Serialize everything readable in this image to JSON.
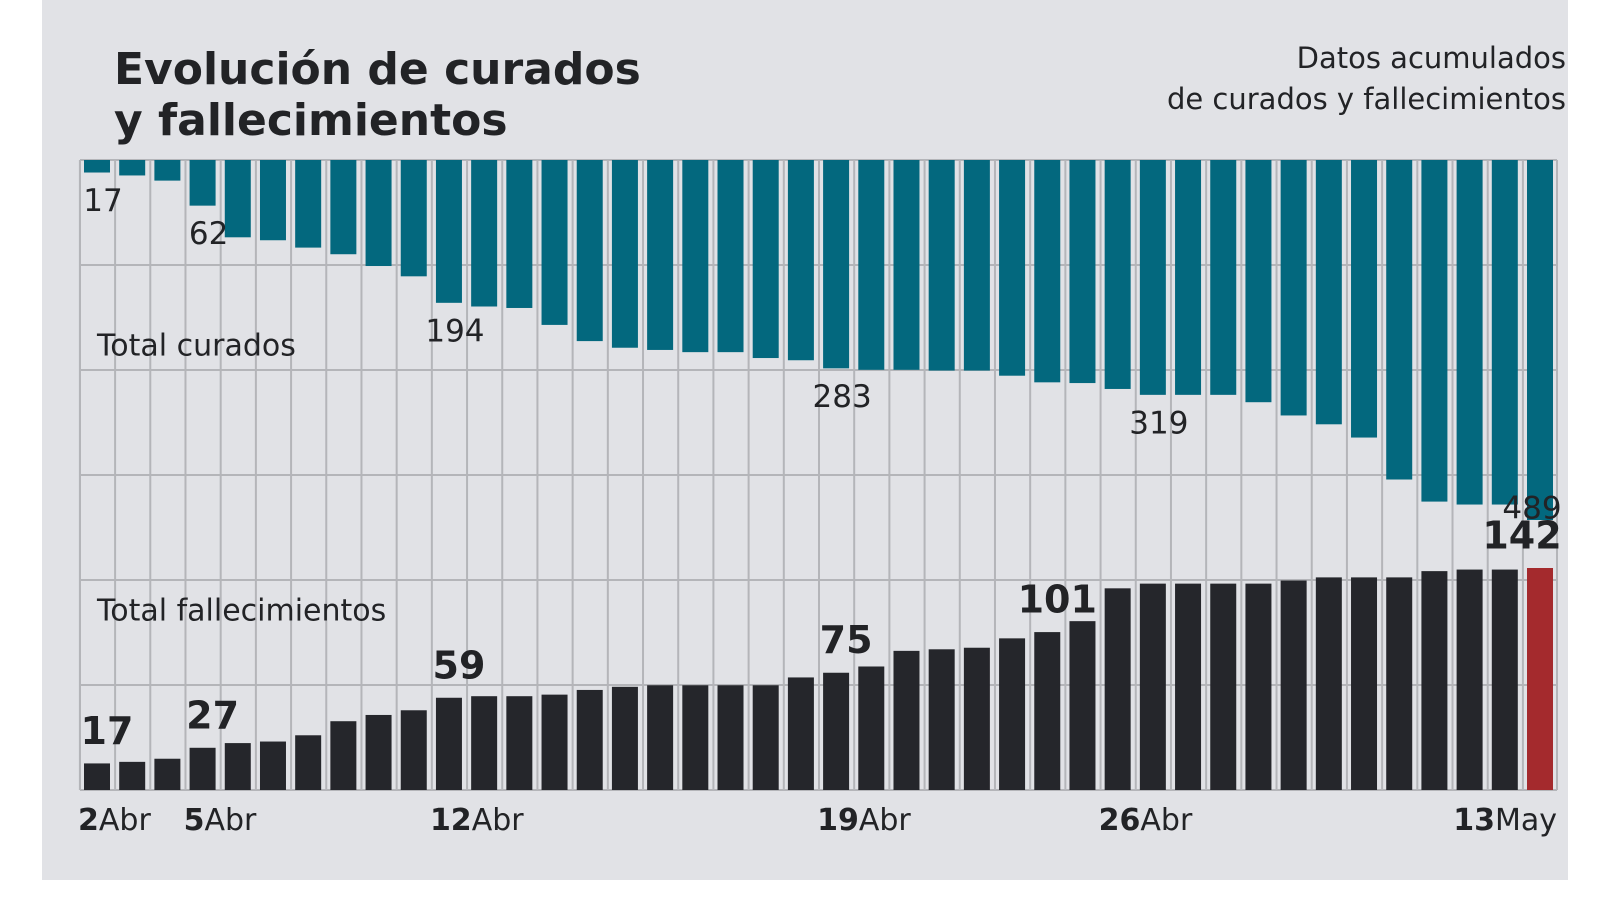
{
  "chart_data": {
    "type": "bar",
    "title": [
      "Evolución de curados",
      "y fallecimientos"
    ],
    "subtitle": [
      "Datos acumulados",
      "de curados y fallecimientos"
    ],
    "categories": [
      "2Abr",
      null,
      null,
      "5Abr",
      null,
      null,
      null,
      null,
      null,
      null,
      "12Abr",
      null,
      null,
      null,
      null,
      null,
      null,
      null,
      null,
      null,
      null,
      "19Abr",
      null,
      null,
      null,
      null,
      null,
      null,
      null,
      "26Abr",
      null,
      null,
      null,
      null,
      null,
      null,
      null,
      null,
      null,
      null,
      null,
      "13May"
    ],
    "series": [
      {
        "name": "Total curados",
        "color": "#03687e",
        "direction": "down",
        "values": [
          17,
          21,
          28,
          62,
          105,
          109,
          119,
          128,
          144,
          158,
          194,
          199,
          201,
          224,
          246,
          255,
          258,
          261,
          261,
          269,
          272,
          283,
          285,
          285,
          286,
          286,
          293,
          302,
          303,
          311,
          319,
          319,
          319,
          329,
          347,
          359,
          377,
          434,
          464,
          468,
          468,
          489
        ],
        "value_labels": [
          "17",
          null,
          null,
          "62",
          null,
          null,
          null,
          null,
          null,
          null,
          "194",
          null,
          null,
          null,
          null,
          null,
          null,
          null,
          null,
          null,
          null,
          "283",
          null,
          null,
          null,
          null,
          null,
          null,
          null,
          null,
          "319",
          null,
          null,
          null,
          null,
          null,
          null,
          null,
          null,
          null,
          null,
          "489"
        ]
      },
      {
        "name": "Total fallecimientos",
        "color": "#25262b",
        "direction": "up",
        "last_bar_color": "#a42a2d",
        "values": [
          17,
          18,
          20,
          27,
          30,
          31,
          35,
          44,
          48,
          51,
          59,
          60,
          60,
          61,
          64,
          66,
          67,
          67,
          67,
          67,
          72,
          75,
          79,
          89,
          90,
          91,
          97,
          101,
          108,
          129,
          132,
          132,
          132,
          132,
          134,
          136,
          136,
          136,
          140,
          141,
          141,
          142
        ],
        "value_labels": [
          "17",
          null,
          null,
          "27",
          null,
          null,
          null,
          null,
          null,
          null,
          "59",
          null,
          null,
          null,
          null,
          null,
          null,
          null,
          null,
          null,
          null,
          "75",
          null,
          null,
          null,
          null,
          null,
          "101",
          null,
          null,
          null,
          null,
          null,
          null,
          null,
          null,
          null,
          null,
          null,
          null,
          null,
          "142"
        ]
      }
    ]
  }
}
